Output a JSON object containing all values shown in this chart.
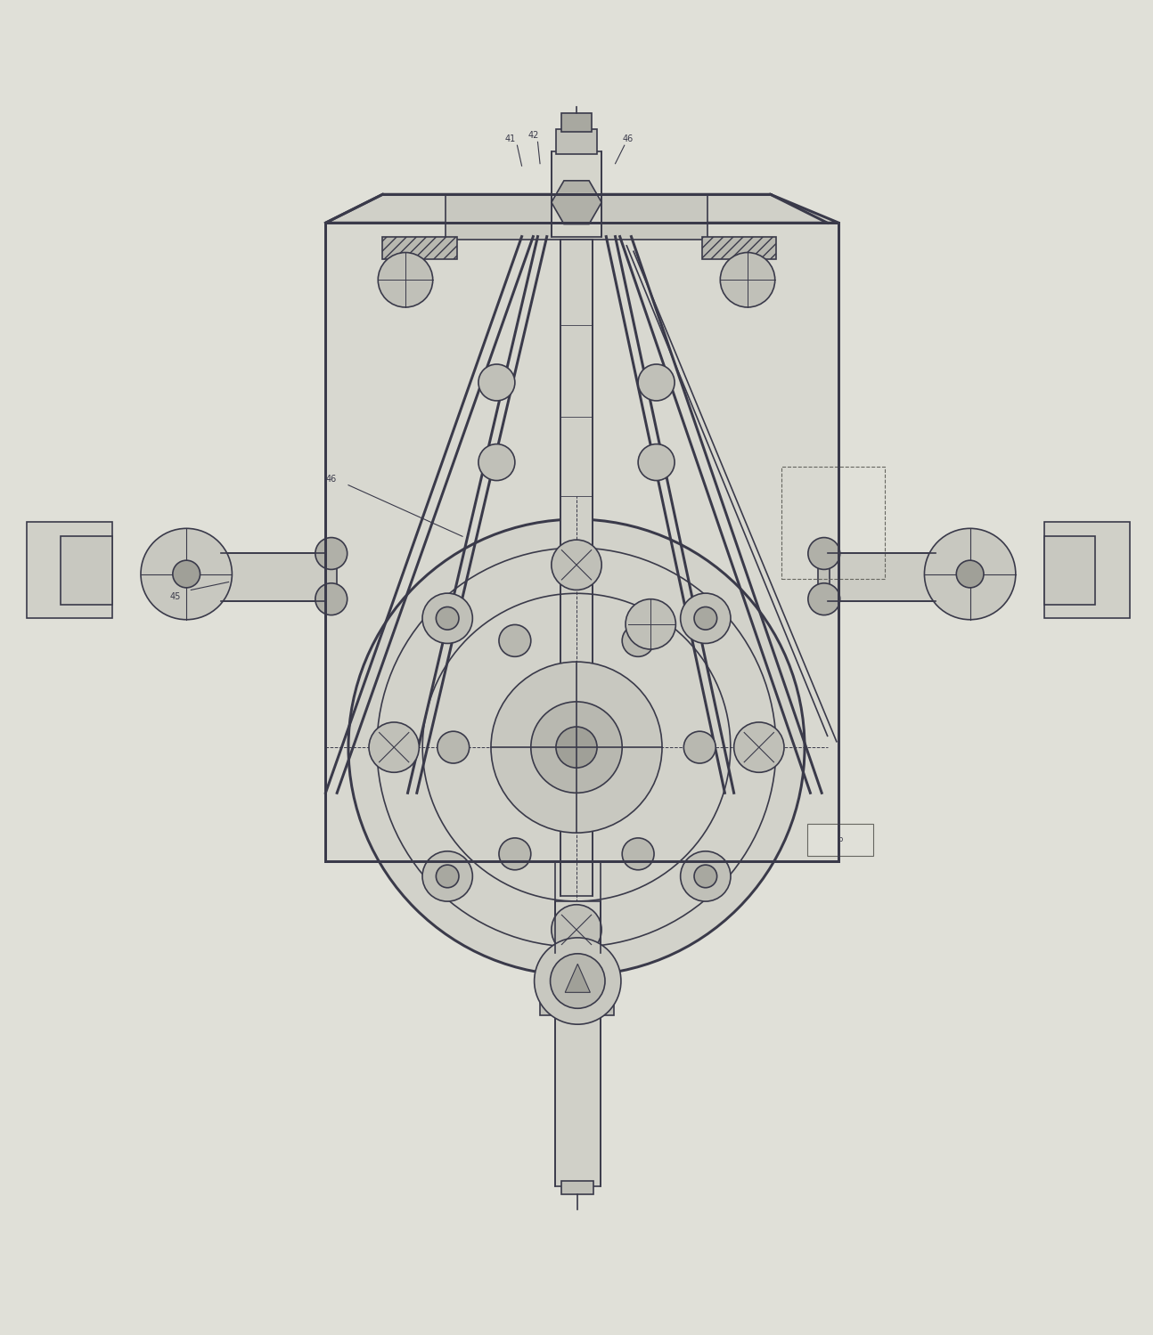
{
  "bg_color": "#e0e0d8",
  "drawing_color": "#3a3a4a",
  "line_width": 1.2,
  "figsize": [
    12.94,
    14.99
  ],
  "dpi": 100
}
